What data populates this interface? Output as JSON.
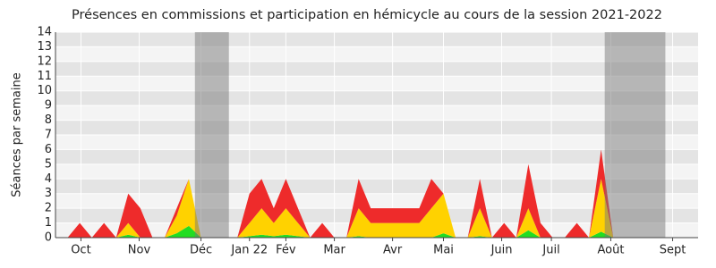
{
  "chart_data": {
    "type": "stacked_area",
    "title": "Présences en commissions et participation en hémicycle au cours de la session 2021-2022",
    "y_label": "Séances par semaine",
    "x": [
      0,
      1,
      2,
      3,
      4,
      5,
      6,
      7,
      8,
      9,
      10,
      11,
      12,
      13,
      14,
      15,
      16,
      17,
      18,
      19,
      20,
      21,
      22,
      23,
      24,
      25,
      26,
      27,
      28,
      29,
      30,
      31,
      32,
      33,
      34,
      35,
      36,
      37,
      38,
      39,
      40,
      41,
      42,
      43,
      44,
      45,
      46,
      47,
      48,
      49,
      50,
      51
    ],
    "series": [
      {
        "color": "#22dd22",
        "values": [
          0,
          0,
          0,
          0,
          0,
          0.2,
          0,
          0,
          0,
          0.3,
          0.8,
          0,
          0,
          0,
          0,
          0.1,
          0.2,
          0.1,
          0.2,
          0.1,
          0,
          0,
          0,
          0,
          0.1,
          0,
          0,
          0,
          0,
          0,
          0,
          0.3,
          0,
          0,
          0.1,
          0,
          0,
          0,
          0.5,
          0,
          0,
          0,
          0,
          0,
          0.4,
          0,
          0,
          0,
          0,
          0,
          0,
          0
        ]
      },
      {
        "color": "#ffd200",
        "values": [
          0,
          0,
          0,
          0,
          0,
          0.8,
          0,
          0,
          0,
          1.2,
          3.2,
          0,
          0,
          0,
          0,
          0.9,
          1.8,
          0.9,
          1.8,
          0.9,
          0,
          0,
          0,
          0,
          1.9,
          1,
          1,
          1,
          1,
          1,
          2,
          2.7,
          0,
          0,
          1.9,
          0,
          0,
          0,
          1.5,
          0,
          0,
          0,
          0,
          0,
          3.6,
          0,
          0,
          0,
          0,
          0,
          0,
          0
        ]
      },
      {
        "color": "#ee2b2b",
        "values": [
          0,
          1,
          0,
          1,
          0,
          2,
          2,
          0,
          0,
          0.5,
          0,
          0,
          0,
          0,
          0,
          2,
          2,
          1,
          2,
          1,
          0,
          1,
          0,
          0,
          2,
          1,
          1,
          1,
          1,
          1,
          2,
          0,
          0,
          0,
          2,
          0,
          1,
          0,
          3,
          1,
          0,
          0,
          1,
          0,
          2,
          0,
          0,
          0,
          0,
          0,
          0,
          0
        ]
      }
    ],
    "shaded_ranges": [
      [
        10.5,
        13.3
      ],
      [
        44.3,
        49.3
      ]
    ],
    "xlim": [
      -1,
      52
    ],
    "xticks": [
      {
        "value": 1.1,
        "label": "Oct"
      },
      {
        "value": 5.9,
        "label": "Nov"
      },
      {
        "value": 11,
        "label": "Déc"
      },
      {
        "value": 15,
        "label": "Jan 22"
      },
      {
        "value": 18,
        "label": "Fév"
      },
      {
        "value": 22,
        "label": "Mar"
      },
      {
        "value": 26.8,
        "label": "Avr"
      },
      {
        "value": 31,
        "label": "Mai"
      },
      {
        "value": 35.8,
        "label": "Juin"
      },
      {
        "value": 39.9,
        "label": "Juil"
      },
      {
        "value": 44.8,
        "label": "Août"
      },
      {
        "value": 49.9,
        "label": "Sept"
      }
    ],
    "ylim": [
      0,
      14
    ],
    "yticks": [
      0,
      1,
      2,
      3,
      4,
      5,
      6,
      7,
      8,
      9,
      10,
      11,
      12,
      13,
      14
    ],
    "grid": true
  }
}
